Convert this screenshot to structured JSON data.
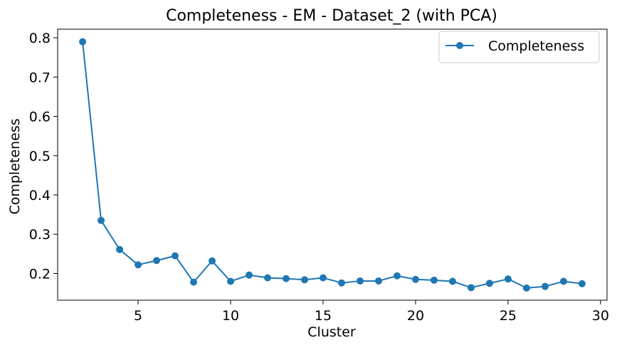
{
  "chart_data": {
    "type": "line",
    "title": "Completeness - EM - Dataset_2 (with PCA)",
    "xlabel": "Cluster",
    "ylabel": "Completeness",
    "xlim": [
      0.65,
      30.35
    ],
    "ylim": [
      0.132,
      0.822
    ],
    "xticks": [
      5,
      10,
      15,
      20,
      25,
      30
    ],
    "yticks": [
      0.2,
      0.3,
      0.4,
      0.5,
      0.6,
      0.7,
      0.8
    ],
    "xtick_labels": [
      "5",
      "10",
      "15",
      "20",
      "25",
      "30"
    ],
    "ytick_labels": [
      "0.2",
      "0.3",
      "0.4",
      "0.5",
      "0.6",
      "0.7",
      "0.8"
    ],
    "grid": false,
    "legend_position": "top-right",
    "series": [
      {
        "name": "Completeness",
        "color": "#1f77b4",
        "marker": "circle",
        "x": [
          2,
          3,
          4,
          5,
          6,
          7,
          8,
          9,
          10,
          11,
          12,
          13,
          14,
          15,
          16,
          17,
          18,
          19,
          20,
          21,
          22,
          23,
          24,
          25,
          26,
          27,
          28,
          29
        ],
        "y": [
          0.79,
          0.335,
          0.261,
          0.222,
          0.233,
          0.245,
          0.178,
          0.232,
          0.18,
          0.196,
          0.189,
          0.187,
          0.184,
          0.189,
          0.176,
          0.181,
          0.181,
          0.194,
          0.185,
          0.183,
          0.18,
          0.164,
          0.175,
          0.186,
          0.163,
          0.167,
          0.18,
          0.174
        ]
      }
    ]
  }
}
